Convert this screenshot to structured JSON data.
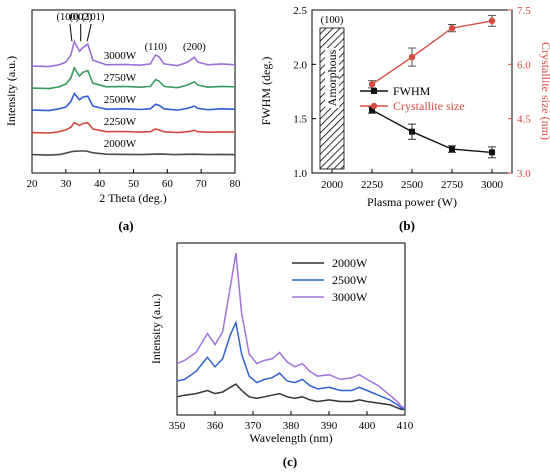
{
  "chart_data": [
    {
      "panel": "(a)",
      "type": "line",
      "xlabel": "2 Theta (deg.)",
      "ylabel": "Intensity (a.u.)",
      "xlim": [
        20,
        80
      ],
      "xticks": [
        20,
        30,
        40,
        50,
        60,
        70,
        80
      ],
      "yticks": false,
      "series": [
        {
          "name": "3000W",
          "color": "#9b6fd6",
          "offset": 4,
          "points": [
            [
              20,
              0.33
            ],
            [
              25,
              0.3
            ],
            [
              28,
              0.4
            ],
            [
              30,
              0.55
            ],
            [
              31.5,
              0.95
            ],
            [
              32.5,
              1.7
            ],
            [
              34,
              1.15
            ],
            [
              35,
              1.35
            ],
            [
              36.5,
              1.55
            ],
            [
              38,
              0.65
            ],
            [
              42,
              0.4
            ],
            [
              47,
              0.42
            ],
            [
              52,
              0.38
            ],
            [
              55,
              0.45
            ],
            [
              56.5,
              0.95
            ],
            [
              57.5,
              0.85
            ],
            [
              59,
              0.45
            ],
            [
              63,
              0.35
            ],
            [
              66,
              0.55
            ],
            [
              68,
              0.82
            ],
            [
              69,
              0.55
            ],
            [
              72,
              0.4
            ],
            [
              76,
              0.45
            ],
            [
              80,
              0.4
            ]
          ]
        },
        {
          "name": "2750W",
          "color": "#3a9a5c",
          "offset": 3,
          "points": [
            [
              20,
              0.33
            ],
            [
              25,
              0.3
            ],
            [
              28,
              0.4
            ],
            [
              30,
              0.55
            ],
            [
              31.5,
              0.9
            ],
            [
              32.5,
              1.45
            ],
            [
              34,
              1.0
            ],
            [
              35,
              1.2
            ],
            [
              36.5,
              1.3
            ],
            [
              38,
              0.6
            ],
            [
              42,
              0.4
            ],
            [
              47,
              0.42
            ],
            [
              52,
              0.38
            ],
            [
              55,
              0.42
            ],
            [
              56.5,
              0.8
            ],
            [
              57.5,
              0.72
            ],
            [
              59,
              0.42
            ],
            [
              63,
              0.35
            ],
            [
              66,
              0.5
            ],
            [
              68,
              0.68
            ],
            [
              69,
              0.5
            ],
            [
              72,
              0.38
            ],
            [
              76,
              0.42
            ],
            [
              80,
              0.4
            ]
          ]
        },
        {
          "name": "2500W",
          "color": "#2f5fd0",
          "offset": 2,
          "points": [
            [
              20,
              0.33
            ],
            [
              25,
              0.3
            ],
            [
              28,
              0.4
            ],
            [
              30,
              0.5
            ],
            [
              31.5,
              0.8
            ],
            [
              32.5,
              1.25
            ],
            [
              34,
              0.9
            ],
            [
              35,
              1.05
            ],
            [
              36.5,
              1.1
            ],
            [
              38,
              0.55
            ],
            [
              42,
              0.38
            ],
            [
              47,
              0.4
            ],
            [
              52,
              0.36
            ],
            [
              55,
              0.4
            ],
            [
              56.5,
              0.65
            ],
            [
              57.5,
              0.6
            ],
            [
              59,
              0.4
            ],
            [
              63,
              0.33
            ],
            [
              66,
              0.42
            ],
            [
              68,
              0.55
            ],
            [
              69,
              0.42
            ],
            [
              72,
              0.35
            ],
            [
              76,
              0.4
            ],
            [
              80,
              0.38
            ]
          ]
        },
        {
          "name": "2250W",
          "color": "#d24a3c",
          "offset": 1,
          "points": [
            [
              20,
              0.3
            ],
            [
              25,
              0.28
            ],
            [
              28,
              0.35
            ],
            [
              30,
              0.45
            ],
            [
              31.5,
              0.6
            ],
            [
              32.5,
              0.85
            ],
            [
              34,
              0.7
            ],
            [
              35,
              0.8
            ],
            [
              36.5,
              0.85
            ],
            [
              38,
              0.5
            ],
            [
              42,
              0.35
            ],
            [
              47,
              0.36
            ],
            [
              52,
              0.33
            ],
            [
              55,
              0.35
            ],
            [
              56.5,
              0.5
            ],
            [
              57.5,
              0.45
            ],
            [
              59,
              0.35
            ],
            [
              63,
              0.3
            ],
            [
              66,
              0.35
            ],
            [
              68,
              0.42
            ],
            [
              69,
              0.35
            ],
            [
              72,
              0.32
            ],
            [
              76,
              0.34
            ],
            [
              80,
              0.33
            ]
          ]
        },
        {
          "name": "2000W",
          "color": "#4a4a4a",
          "offset": 0,
          "points": [
            [
              20,
              0.3
            ],
            [
              25,
              0.27
            ],
            [
              28,
              0.3
            ],
            [
              30,
              0.38
            ],
            [
              32,
              0.48
            ],
            [
              34,
              0.5
            ],
            [
              36,
              0.5
            ],
            [
              38,
              0.4
            ],
            [
              42,
              0.32
            ],
            [
              47,
              0.31
            ],
            [
              52,
              0.3
            ],
            [
              56,
              0.32
            ],
            [
              58,
              0.33
            ],
            [
              62,
              0.3
            ],
            [
              68,
              0.32
            ],
            [
              72,
              0.3
            ],
            [
              76,
              0.31
            ],
            [
              80,
              0.3
            ]
          ]
        }
      ],
      "peak_labels": [
        {
          "text": "(100)",
          "x": 31.8
        },
        {
          "text": "(002)",
          "x": 34.4
        },
        {
          "text": "(101)",
          "x": 36.3
        },
        {
          "text": "(110)",
          "x": 56.6
        },
        {
          "text": "(200)",
          "x": 68.0
        }
      ]
    },
    {
      "panel": "(b)",
      "type": "line",
      "xlabel": "Plasma power (W)",
      "ylabel": "FWHM (deg.)",
      "ylabel_right": "Crystallite size (nm)",
      "xlim": [
        1875,
        3125
      ],
      "xticks": [
        2000,
        2250,
        2500,
        2750,
        3000
      ],
      "ylim": [
        1.0,
        2.5
      ],
      "yticks": [
        1.0,
        1.5,
        2.0,
        2.5
      ],
      "ylim_right": [
        3.0,
        7.5
      ],
      "yticks_right": [
        3.0,
        4.5,
        6.0,
        7.5
      ],
      "amorphous_region": {
        "x_range": [
          1925,
          2075
        ],
        "label": "Amorphous",
        "peak": "(100)"
      },
      "series": [
        {
          "name": "FWHM",
          "color": "#111111",
          "marker": "square",
          "axis": "left",
          "x": [
            2250,
            2500,
            2750,
            3000
          ],
          "y": [
            1.58,
            1.38,
            1.22,
            1.19
          ],
          "err": [
            0.03,
            0.07,
            0.03,
            0.05
          ]
        },
        {
          "name": "Crystallite size",
          "color": "#d64b40",
          "marker": "circle",
          "axis": "right",
          "x": [
            2250,
            2500,
            2750,
            3000
          ],
          "y": [
            5.45,
            6.2,
            7.0,
            7.2
          ],
          "err": [
            0.1,
            0.25,
            0.1,
            0.15
          ]
        }
      ]
    },
    {
      "panel": "(c)",
      "type": "line",
      "xlabel": "Wavelength (nm)",
      "ylabel": "Intensity (a.u.)",
      "xlim": [
        350,
        410
      ],
      "xticks": [
        350,
        360,
        370,
        380,
        390,
        400,
        410
      ],
      "yticks": false,
      "series": [
        {
          "name": "2000W",
          "color": "#333333",
          "points": [
            [
              350,
              0.09
            ],
            [
              352,
              0.1
            ],
            [
              355,
              0.11
            ],
            [
              358,
              0.13
            ],
            [
              360,
              0.11
            ],
            [
              362,
              0.12
            ],
            [
              364,
              0.15
            ],
            [
              365.5,
              0.17
            ],
            [
              367,
              0.13
            ],
            [
              369,
              0.09
            ],
            [
              371,
              0.08
            ],
            [
              373,
              0.09
            ],
            [
              375,
              0.1
            ],
            [
              377,
              0.11
            ],
            [
              379,
              0.09
            ],
            [
              381,
              0.08
            ],
            [
              383,
              0.09
            ],
            [
              385,
              0.07
            ],
            [
              387,
              0.06
            ],
            [
              390,
              0.07
            ],
            [
              393,
              0.06
            ],
            [
              396,
              0.06
            ],
            [
              398,
              0.07
            ],
            [
              400,
              0.06
            ],
            [
              403,
              0.05
            ],
            [
              406,
              0.04
            ],
            [
              408,
              0.02
            ],
            [
              409,
              0.01
            ],
            [
              410,
              0.01
            ]
          ]
        },
        {
          "name": "2500W",
          "color": "#2e63cf",
          "points": [
            [
              350,
              0.19
            ],
            [
              352,
              0.2
            ],
            [
              355,
              0.25
            ],
            [
              357,
              0.31
            ],
            [
              358,
              0.34
            ],
            [
              360,
              0.28
            ],
            [
              362,
              0.33
            ],
            [
              364,
              0.48
            ],
            [
              365.5,
              0.56
            ],
            [
              367,
              0.36
            ],
            [
              369,
              0.22
            ],
            [
              371,
              0.18
            ],
            [
              373,
              0.2
            ],
            [
              375,
              0.21
            ],
            [
              377,
              0.24
            ],
            [
              379,
              0.19
            ],
            [
              381,
              0.18
            ],
            [
              383,
              0.2
            ],
            [
              385,
              0.16
            ],
            [
              387,
              0.14
            ],
            [
              390,
              0.15
            ],
            [
              393,
              0.13
            ],
            [
              396,
              0.13
            ],
            [
              398,
              0.15
            ],
            [
              400,
              0.13
            ],
            [
              403,
              0.1
            ],
            [
              406,
              0.07
            ],
            [
              408,
              0.04
            ],
            [
              409,
              0.02
            ],
            [
              410,
              0.01
            ]
          ]
        },
        {
          "name": "3000W",
          "color": "#a173dc",
          "points": [
            [
              350,
              0.3
            ],
            [
              352,
              0.32
            ],
            [
              355,
              0.37
            ],
            [
              357,
              0.45
            ],
            [
              358,
              0.49
            ],
            [
              360,
              0.42
            ],
            [
              362,
              0.5
            ],
            [
              364,
              0.78
            ],
            [
              365.5,
              1.0
            ],
            [
              367,
              0.62
            ],
            [
              369,
              0.36
            ],
            [
              371,
              0.3
            ],
            [
              373,
              0.32
            ],
            [
              375,
              0.33
            ],
            [
              377,
              0.37
            ],
            [
              379,
              0.31
            ],
            [
              381,
              0.28
            ],
            [
              383,
              0.3
            ],
            [
              385,
              0.25
            ],
            [
              387,
              0.22
            ],
            [
              390,
              0.23
            ],
            [
              393,
              0.2
            ],
            [
              396,
              0.21
            ],
            [
              398,
              0.23
            ],
            [
              400,
              0.2
            ],
            [
              403,
              0.16
            ],
            [
              406,
              0.1
            ],
            [
              408,
              0.06
            ],
            [
              409,
              0.03
            ],
            [
              410,
              0.02
            ]
          ]
        }
      ]
    }
  ]
}
